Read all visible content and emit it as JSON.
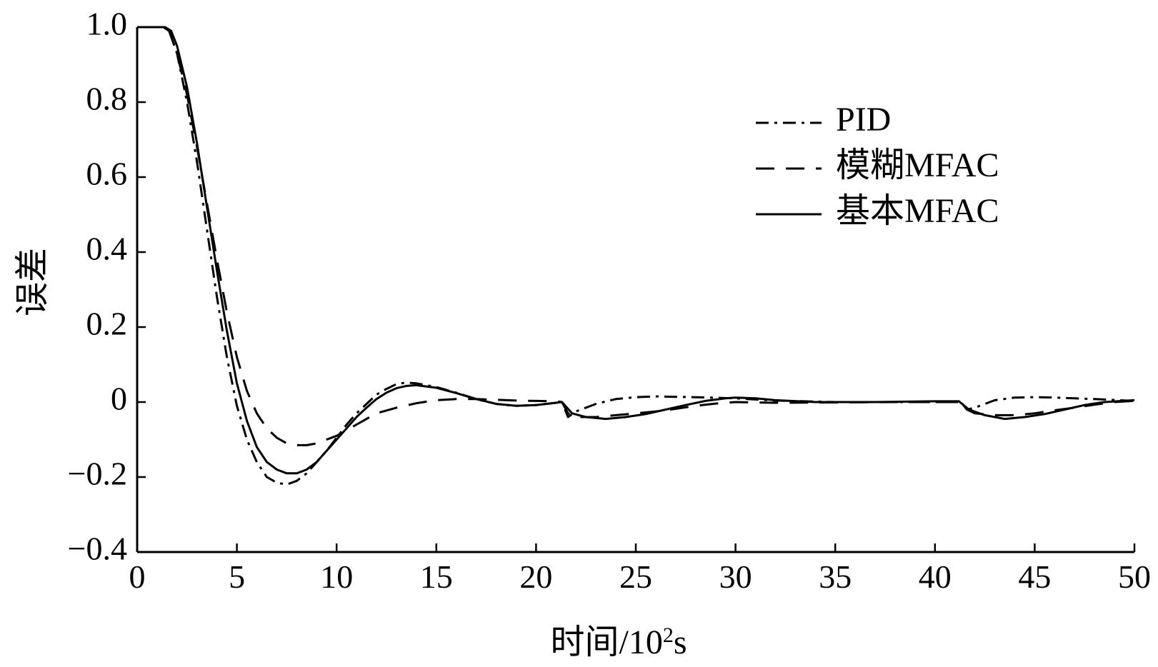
{
  "chart_data": {
    "type": "line",
    "title": "",
    "xlabel_main": "时间/10",
    "xlabel_sup": "2",
    "xlabel_tail": "s",
    "ylabel": "误差",
    "xlim": [
      0,
      50
    ],
    "ylim": [
      -0.4,
      1.0
    ],
    "xticks": [
      0,
      5,
      10,
      15,
      20,
      25,
      30,
      35,
      40,
      45,
      50
    ],
    "xtick_labels": [
      "0",
      "5",
      "10",
      "15",
      "20",
      "25",
      "30",
      "35",
      "40",
      "45",
      "50"
    ],
    "yticks": [
      1.0,
      0.8,
      0.6,
      0.4,
      0.2,
      0,
      -0.2,
      -0.4
    ],
    "ytick_labels": [
      "1.0",
      "0.8",
      "0.6",
      "0.4",
      "0.2",
      "0",
      "−0.2",
      "−0.4"
    ],
    "grid": false,
    "legend_position": "top-right",
    "series": [
      {
        "name": "PID",
        "style": "dash-dot",
        "color": "#000000",
        "points": [
          [
            0,
            1.0
          ],
          [
            1.3,
            1.0
          ],
          [
            1.6,
            0.99
          ],
          [
            2,
            0.93
          ],
          [
            2.5,
            0.8
          ],
          [
            3,
            0.64
          ],
          [
            3.5,
            0.46
          ],
          [
            4,
            0.28
          ],
          [
            4.5,
            0.12
          ],
          [
            5,
            -0.01
          ],
          [
            5.5,
            -0.1
          ],
          [
            6,
            -0.16
          ],
          [
            6.5,
            -0.2
          ],
          [
            7,
            -0.215
          ],
          [
            7.5,
            -0.22
          ],
          [
            8,
            -0.21
          ],
          [
            8.5,
            -0.19
          ],
          [
            9,
            -0.16
          ],
          [
            9.5,
            -0.13
          ],
          [
            10,
            -0.095
          ],
          [
            10.5,
            -0.06
          ],
          [
            11,
            -0.03
          ],
          [
            11.5,
            -0.005
          ],
          [
            12,
            0.02
          ],
          [
            12.5,
            0.035
          ],
          [
            13,
            0.048
          ],
          [
            13.5,
            0.052
          ],
          [
            14,
            0.05
          ],
          [
            15,
            0.04
          ],
          [
            16,
            0.025
          ],
          [
            17,
            0.008
          ],
          [
            18,
            -0.005
          ],
          [
            19,
            -0.01
          ],
          [
            20,
            -0.008
          ],
          [
            21,
            -0.002
          ],
          [
            21.3,
            0.0
          ],
          [
            21.6,
            -0.04
          ],
          [
            22,
            -0.025
          ],
          [
            23,
            -0.005
          ],
          [
            24,
            0.008
          ],
          [
            25,
            0.013
          ],
          [
            26,
            0.015
          ],
          [
            28,
            0.013
          ],
          [
            30,
            0.01
          ],
          [
            32,
            0.004
          ],
          [
            35,
            0.0
          ],
          [
            38,
            0.0
          ],
          [
            41,
            0.0
          ],
          [
            41.3,
            0.0
          ],
          [
            41.6,
            -0.02
          ],
          [
            42,
            -0.015
          ],
          [
            43,
            0.005
          ],
          [
            44,
            0.012
          ],
          [
            45,
            0.013
          ],
          [
            46,
            0.012
          ],
          [
            47,
            0.01
          ],
          [
            48,
            0.008
          ],
          [
            50,
            0.003
          ]
        ]
      },
      {
        "name": "模糊MFAC",
        "style": "dashed",
        "color": "#000000",
        "points": [
          [
            0,
            1.0
          ],
          [
            1.3,
            1.0
          ],
          [
            1.6,
            0.99
          ],
          [
            2,
            0.93
          ],
          [
            2.5,
            0.82
          ],
          [
            3,
            0.68
          ],
          [
            3.5,
            0.53
          ],
          [
            4,
            0.38
          ],
          [
            4.5,
            0.24
          ],
          [
            5,
            0.12
          ],
          [
            5.5,
            0.03
          ],
          [
            6,
            -0.03
          ],
          [
            6.5,
            -0.07
          ],
          [
            7,
            -0.095
          ],
          [
            7.5,
            -0.11
          ],
          [
            8,
            -0.115
          ],
          [
            8.5,
            -0.115
          ],
          [
            9,
            -0.11
          ],
          [
            9.5,
            -0.1
          ],
          [
            10,
            -0.09
          ],
          [
            10.5,
            -0.075
          ],
          [
            11,
            -0.06
          ],
          [
            11.5,
            -0.045
          ],
          [
            12,
            -0.03
          ],
          [
            13,
            -0.015
          ],
          [
            14,
            -0.003
          ],
          [
            15,
            0.005
          ],
          [
            16,
            0.008
          ],
          [
            17,
            0.008
          ],
          [
            18,
            0.006
          ],
          [
            19,
            0.004
          ],
          [
            20,
            0.003
          ],
          [
            21,
            0.002
          ],
          [
            21.3,
            0.0
          ],
          [
            21.6,
            -0.03
          ],
          [
            22,
            -0.04
          ],
          [
            23,
            -0.04
          ],
          [
            24,
            -0.035
          ],
          [
            25,
            -0.03
          ],
          [
            26,
            -0.025
          ],
          [
            27,
            -0.018
          ],
          [
            28,
            -0.01
          ],
          [
            29,
            -0.004
          ],
          [
            30,
            0.0
          ],
          [
            32,
            -0.002
          ],
          [
            35,
            -0.001
          ],
          [
            38,
            0.0
          ],
          [
            41,
            0.0
          ],
          [
            41.3,
            0.0
          ],
          [
            41.6,
            -0.02
          ],
          [
            42,
            -0.03
          ],
          [
            43,
            -0.035
          ],
          [
            44,
            -0.035
          ],
          [
            45,
            -0.03
          ],
          [
            46,
            -0.022
          ],
          [
            47,
            -0.015
          ],
          [
            48,
            -0.007
          ],
          [
            49,
            0.0
          ],
          [
            50,
            0.003
          ]
        ]
      },
      {
        "name": "基本MFAC",
        "style": "solid",
        "color": "#000000",
        "points": [
          [
            0,
            1.0
          ],
          [
            1.4,
            1.0
          ],
          [
            1.7,
            0.99
          ],
          [
            2,
            0.95
          ],
          [
            2.5,
            0.84
          ],
          [
            3,
            0.69
          ],
          [
            3.5,
            0.52
          ],
          [
            4,
            0.35
          ],
          [
            4.5,
            0.19
          ],
          [
            5,
            0.05
          ],
          [
            5.5,
            -0.05
          ],
          [
            6,
            -0.12
          ],
          [
            6.5,
            -0.16
          ],
          [
            7,
            -0.18
          ],
          [
            7.5,
            -0.19
          ],
          [
            8,
            -0.19
          ],
          [
            8.5,
            -0.18
          ],
          [
            9,
            -0.16
          ],
          [
            9.5,
            -0.13
          ],
          [
            10,
            -0.1
          ],
          [
            10.5,
            -0.07
          ],
          [
            11,
            -0.04
          ],
          [
            11.5,
            -0.015
          ],
          [
            12,
            0.008
          ],
          [
            12.5,
            0.025
          ],
          [
            13,
            0.037
          ],
          [
            13.5,
            0.043
          ],
          [
            14,
            0.045
          ],
          [
            15,
            0.038
          ],
          [
            16,
            0.024
          ],
          [
            17,
            0.008
          ],
          [
            18,
            -0.005
          ],
          [
            19,
            -0.01
          ],
          [
            20,
            -0.008
          ],
          [
            21,
            -0.002
          ],
          [
            21.3,
            0.0
          ],
          [
            21.8,
            -0.03
          ],
          [
            22.5,
            -0.04
          ],
          [
            23.5,
            -0.045
          ],
          [
            24.5,
            -0.04
          ],
          [
            25.5,
            -0.032
          ],
          [
            26.5,
            -0.02
          ],
          [
            27.5,
            -0.008
          ],
          [
            28.5,
            0.003
          ],
          [
            29.5,
            0.01
          ],
          [
            30,
            0.012
          ],
          [
            31,
            0.01
          ],
          [
            32,
            0.005
          ],
          [
            34,
            0.0
          ],
          [
            37,
            0.0
          ],
          [
            40,
            0.002
          ],
          [
            41.2,
            0.002
          ],
          [
            41.7,
            -0.02
          ],
          [
            42.5,
            -0.035
          ],
          [
            43.5,
            -0.045
          ],
          [
            44.5,
            -0.04
          ],
          [
            45.5,
            -0.032
          ],
          [
            46.5,
            -0.02
          ],
          [
            47.5,
            -0.008
          ],
          [
            48.5,
            0.0
          ],
          [
            50,
            0.005
          ]
        ]
      }
    ]
  }
}
